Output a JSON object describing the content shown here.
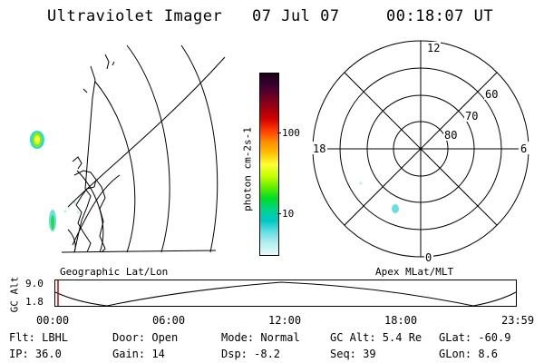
{
  "header": {
    "instrument": "Ultraviolet Imager",
    "date": "07 Jul 07",
    "time": "00:18:07 UT"
  },
  "panels": {
    "geo_label": "Geographic Lat/Lon",
    "apex_label": "Apex MLat/MLT"
  },
  "colorbar": {
    "unit_label": "photon cm-2s-1",
    "ticks": [
      "100",
      "10"
    ],
    "colors": [
      "#1a0018",
      "#3a0030",
      "#6a0028",
      "#9c0010",
      "#d40000",
      "#ff3b00",
      "#ff8a00",
      "#ffc000",
      "#ffff33",
      "#c8ff00",
      "#66ee00",
      "#00dd22",
      "#00d48c",
      "#00c8c8",
      "#66e0e0",
      "#b8f0f0",
      "#e8fafa"
    ]
  },
  "polar": {
    "mlt_labels": {
      "top": "12",
      "left": "18",
      "right": "6",
      "bottom": "0"
    },
    "lat_labels": [
      "60",
      "70",
      "80"
    ]
  },
  "altitude_plot": {
    "ylabel": "GC Alt",
    "yticks": [
      "9.0",
      "1.8"
    ],
    "xticks": [
      "00:00",
      "06:00",
      "12:00",
      "18:00",
      "23:59"
    ],
    "curve_color": "#000000",
    "marker_color": "#cc0000"
  },
  "status": {
    "filter": "Flt: LBHL",
    "door": "Door: Open",
    "mode": "Mode: Normal",
    "gc_alt": "GC Alt: 5.4 Re",
    "glat": "GLat: -60.9",
    "ip": "IP: 36.0",
    "gain": "Gain: 14",
    "dsp": "Dsp:   -8.2",
    "seq": "Seq: 39",
    "glon": "GLon:  8.6"
  }
}
